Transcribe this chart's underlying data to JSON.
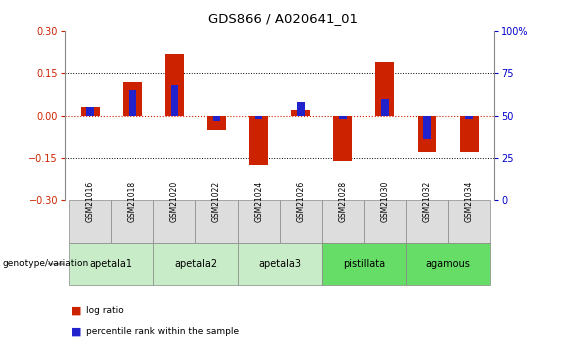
{
  "title": "GDS866 / A020641_01",
  "samples": [
    "GSM21016",
    "GSM21018",
    "GSM21020",
    "GSM21022",
    "GSM21024",
    "GSM21026",
    "GSM21028",
    "GSM21030",
    "GSM21032",
    "GSM21034"
  ],
  "log_ratio": [
    0.03,
    0.12,
    0.22,
    -0.05,
    -0.175,
    0.02,
    -0.16,
    0.19,
    -0.13,
    -0.13
  ],
  "pct_rank_mapped": [
    0.03,
    0.09,
    0.11,
    -0.018,
    -0.012,
    0.048,
    -0.012,
    0.06,
    -0.084,
    -0.012
  ],
  "groups": [
    {
      "label": "apetala1",
      "indices": [
        0,
        1
      ],
      "color": "#c8ecc8"
    },
    {
      "label": "apetala2",
      "indices": [
        2,
        3
      ],
      "color": "#c8ecc8"
    },
    {
      "label": "apetala3",
      "indices": [
        4,
        5
      ],
      "color": "#c8ecc8"
    },
    {
      "label": "pistillata",
      "indices": [
        6,
        7
      ],
      "color": "#66dd66"
    },
    {
      "label": "agamous",
      "indices": [
        8,
        9
      ],
      "color": "#66dd66"
    }
  ],
  "ylim_left": [
    -0.3,
    0.3
  ],
  "ylim_right": [
    0,
    100
  ],
  "yticks_left": [
    -0.3,
    -0.15,
    0.0,
    0.15,
    0.3
  ],
  "yticks_right": [
    0,
    25,
    50,
    75,
    100
  ],
  "ytick_labels_right": [
    "0",
    "25",
    "50",
    "75",
    "100%"
  ],
  "bar_color": "#cc2200",
  "pct_color": "#2222cc",
  "zero_line_color": "#cc2200",
  "bar_width": 0.45,
  "pct_bar_width": 0.18,
  "legend_log_ratio": "log ratio",
  "legend_pct": "percentile rank within the sample",
  "genotype_label": "genotype/variation"
}
